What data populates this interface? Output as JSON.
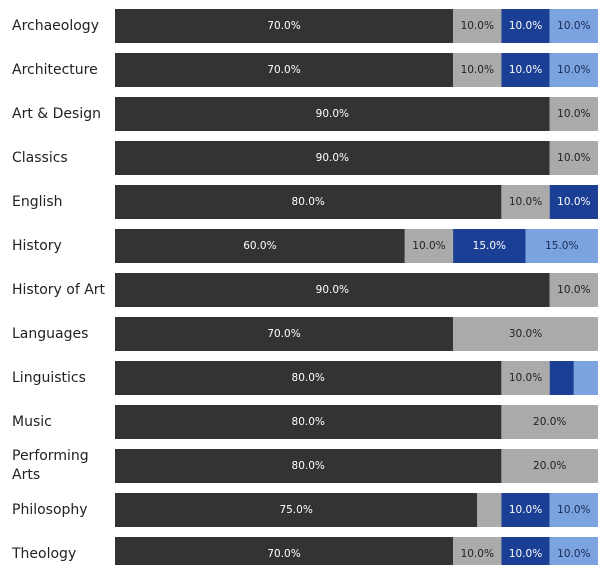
{
  "chart_data": {
    "type": "stacked-bar-horizontal",
    "categories": [
      "Archaeology",
      "Architecture",
      "Art & Design",
      "Classics",
      "English",
      "History",
      "History of Art",
      "Languages",
      "Linguistics",
      "Music",
      "Performing Arts",
      "Philosophy",
      "Theology"
    ],
    "xlim": [
      0,
      100
    ],
    "series": [
      {
        "color": "#333333",
        "values": [
          70,
          70,
          90,
          90,
          80,
          60,
          90,
          70,
          80,
          80,
          80,
          75,
          70
        ],
        "value_labels": [
          "70.0%",
          "70.0%",
          "90.0%",
          "90.0%",
          "80.0%",
          "60.0%",
          "90.0%",
          "70.0%",
          "80.0%",
          "80.0%",
          "80.0%",
          "75.0%",
          "70.0%"
        ]
      },
      {
        "color": "#aaaaaa",
        "values": [
          10,
          10,
          10,
          10,
          10,
          10,
          10,
          30,
          10,
          20,
          20,
          5,
          10
        ],
        "value_labels": [
          "10.0%",
          "10.0%",
          "10.0%",
          "10.0%",
          "10.0%",
          "10.0%",
          "10.0%",
          "30.0%",
          "10.0%",
          "20.0%",
          "20.0%",
          null,
          "10.0%"
        ]
      },
      {
        "color": "#1a3f94",
        "values": [
          10,
          10,
          null,
          null,
          10,
          15,
          null,
          null,
          5,
          null,
          null,
          10,
          10
        ],
        "value_labels": [
          "10.0%",
          "10.0%",
          null,
          null,
          "10.0%",
          "15.0%",
          null,
          null,
          null,
          null,
          null,
          "10.0%",
          "10.0%"
        ]
      },
      {
        "color": "#7aa3e0",
        "values": [
          10,
          10,
          null,
          null,
          null,
          15,
          null,
          null,
          5,
          null,
          null,
          10,
          10
        ],
        "value_labels": [
          "10.0%",
          "10.0%",
          null,
          null,
          null,
          "15.0%",
          null,
          null,
          null,
          null,
          null,
          "10.0%",
          "10.0%"
        ]
      }
    ]
  }
}
